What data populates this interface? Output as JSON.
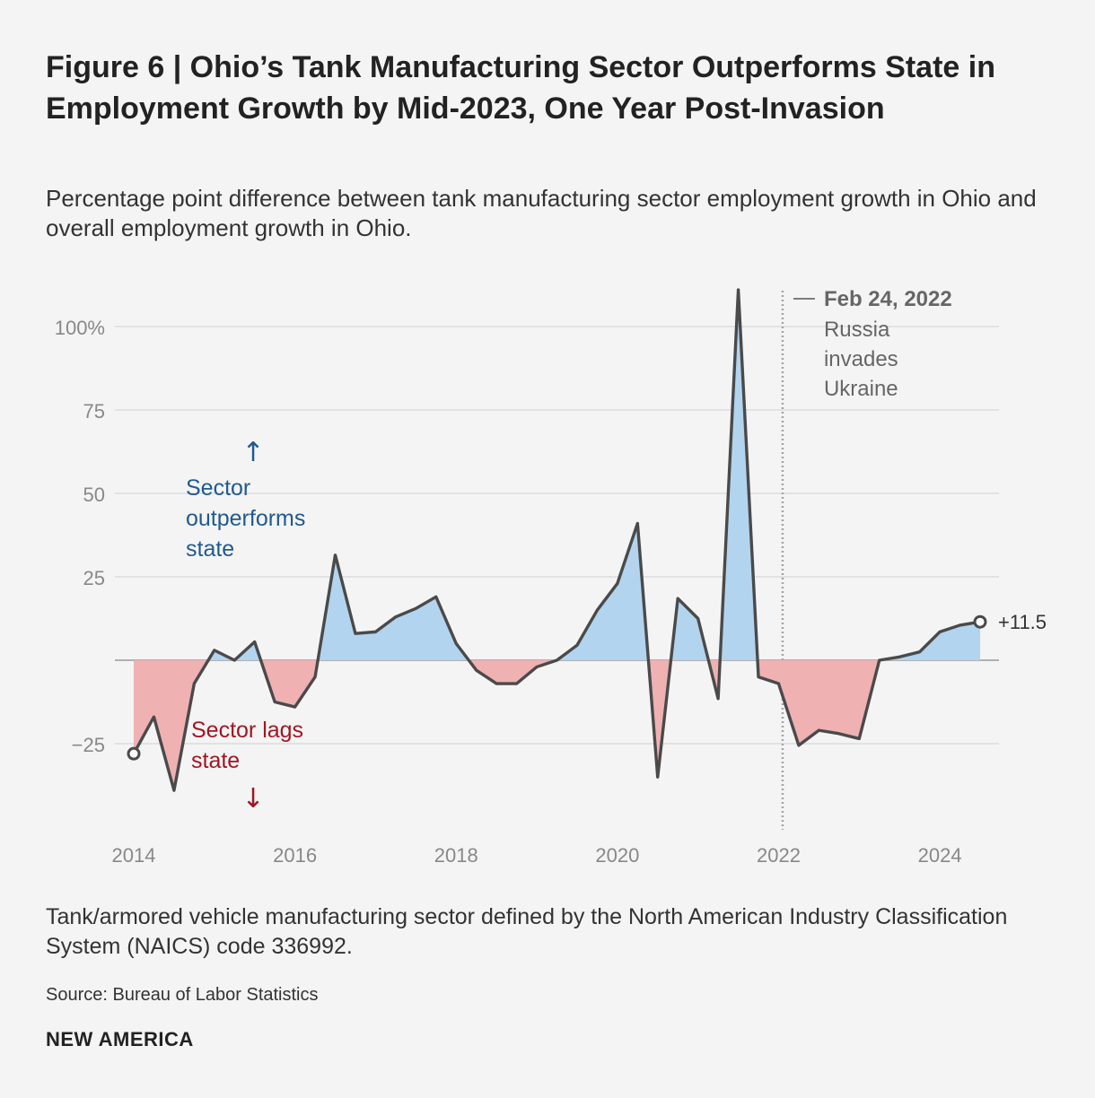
{
  "title": "Figure 6 | Ohio’s Tank Manufacturing Sector Outperforms State in Employment Growth by Mid-2023, One Year Post-Invasion",
  "subtitle": "Percentage point difference between tank manufacturing sector employment growth in Ohio and overall employment growth in Ohio.",
  "note": "Tank/armored vehicle manufacturing sector defined by the North American Industry Classification System (NAICS) code 336992.",
  "source": "Source: Bureau of Labor Statistics",
  "brand": "NEW AMERICA",
  "colors": {
    "positive_fill": "#b3d4ee",
    "negative_fill": "#f0b1b3",
    "line": "#4a4a4a",
    "outperform_text": "#1f5a92",
    "lag_text": "#a31523",
    "grid": "#d6d6d6",
    "axis_text": "#888888"
  },
  "chart_data": {
    "type": "area",
    "ylabel": "",
    "xlabel": "",
    "ylim": [
      -38,
      112
    ],
    "xlim": [
      2013.85,
      2024.75
    ],
    "y_ticks": [
      {
        "value": 100,
        "label": "100%"
      },
      {
        "value": 75,
        "label": "75"
      },
      {
        "value": 50,
        "label": "50"
      },
      {
        "value": 25,
        "label": "25"
      },
      {
        "value": -25,
        "label": "−25"
      }
    ],
    "x_ticks": [
      {
        "value": 2014,
        "label": "2014"
      },
      {
        "value": 2016,
        "label": "2016"
      },
      {
        "value": 2018,
        "label": "2018"
      },
      {
        "value": 2020,
        "label": "2020"
      },
      {
        "value": 2022,
        "label": "2022"
      },
      {
        "value": 2024,
        "label": "2024"
      }
    ],
    "grid": true,
    "series": [
      {
        "x": [
          2014.0,
          2014.25,
          2014.5,
          2014.75,
          2015.0,
          2015.25,
          2015.5,
          2015.75,
          2016.0,
          2016.25,
          2016.5,
          2016.75,
          2017.0,
          2017.25,
          2017.5,
          2017.75,
          2018.0,
          2018.25,
          2018.5,
          2018.75,
          2019.0,
          2019.25,
          2019.5,
          2019.75,
          2020.0,
          2020.25,
          2020.5,
          2020.75,
          2021.0,
          2021.25,
          2021.5,
          2021.75,
          2022.0,
          2022.25,
          2022.5,
          2022.75,
          2023.0,
          2023.25,
          2023.5,
          2023.75,
          2024.0,
          2024.25,
          2024.5
        ],
        "values": [
          -28,
          -17,
          -39,
          -7,
          3,
          0,
          5.5,
          -12.5,
          -14,
          -5,
          31.5,
          8,
          8.5,
          13,
          15.5,
          19,
          5,
          -3,
          -7,
          -7,
          -2,
          0,
          4.5,
          15,
          23,
          41,
          -35,
          18.5,
          12.5,
          -11.5,
          111,
          -5,
          -7,
          -25.5,
          -21,
          -22,
          -23.5,
          0,
          1,
          2.5,
          8.5,
          10.5,
          11.5
        ]
      }
    ],
    "annotations": {
      "event_x": 2022.05,
      "event_date": "Feb 24, 2022",
      "event_lines": [
        "Russia",
        "invades",
        "Ukraine"
      ],
      "outperform_lines": [
        "Sector",
        "outperforms",
        "state"
      ],
      "lag_lines": [
        "Sector lags",
        "state"
      ],
      "last_value_label": "+11.5",
      "up_arrow": "↑",
      "down_arrow": "↓"
    }
  }
}
